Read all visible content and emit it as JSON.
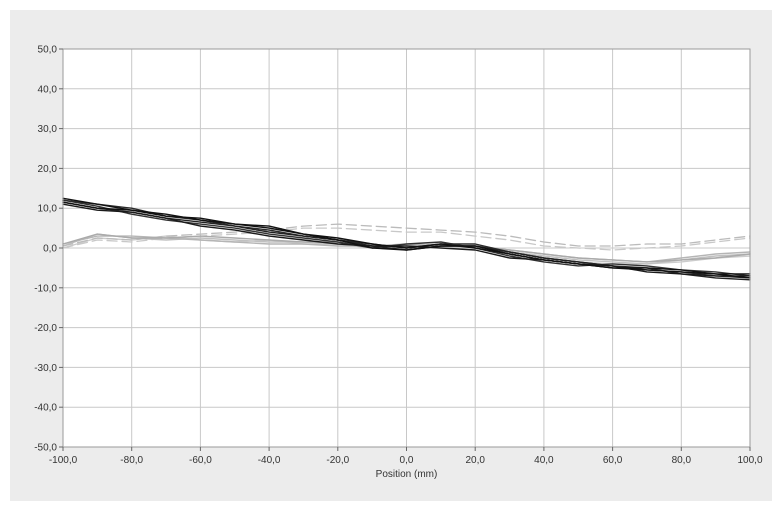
{
  "chart_data": {
    "type": "line",
    "title": "",
    "xlabel": "Position (mm)",
    "ylabel": "",
    "xlim": [
      -100,
      100
    ],
    "ylim": [
      -50,
      50
    ],
    "grid": true,
    "x_ticks": [
      -100,
      -80,
      -60,
      -40,
      -20,
      0,
      20,
      40,
      60,
      80,
      100
    ],
    "y_ticks": [
      -50,
      -40,
      -30,
      -20,
      -10,
      0,
      10,
      20,
      30,
      40,
      50
    ],
    "x_tick_labels": [
      "-100,0",
      "-80,0",
      "-60,0",
      "-40,0",
      "-20,0",
      "0,0",
      "20,0",
      "40,0",
      "60,0",
      "80,0",
      "100,0"
    ],
    "y_tick_labels": [
      "-50,0",
      "-40,0",
      "-30,0",
      "-20,0",
      "-10,0",
      "0,0",
      "10,0",
      "20,0",
      "30,0",
      "40,0",
      "50,0"
    ],
    "x": [
      -100,
      -90,
      -80,
      -70,
      -60,
      -50,
      -40,
      -30,
      -20,
      -10,
      0,
      10,
      20,
      30,
      40,
      50,
      60,
      70,
      80,
      90,
      100
    ],
    "series": [
      {
        "color": "#111111",
        "dashed": false,
        "values": [
          12.5,
          11.0,
          9.5,
          8.5,
          7.0,
          6.0,
          5.0,
          3.5,
          2.5,
          1.0,
          0.0,
          1.0,
          0.0,
          -1.5,
          -3.0,
          -4.0,
          -5.0,
          -5.5,
          -6.0,
          -6.5,
          -7.5
        ]
      },
      {
        "color": "#222222",
        "dashed": false,
        "values": [
          11.5,
          10.0,
          9.0,
          7.5,
          6.5,
          5.5,
          4.0,
          3.0,
          2.0,
          0.5,
          -0.5,
          0.5,
          0.5,
          -1.0,
          -2.5,
          -3.5,
          -4.5,
          -5.0,
          -6.5,
          -7.5,
          -8.0
        ]
      },
      {
        "color": "#333333",
        "dashed": false,
        "values": [
          12.0,
          10.5,
          8.5,
          7.0,
          6.0,
          5.0,
          3.5,
          2.5,
          1.5,
          0.0,
          1.0,
          1.5,
          0.0,
          -2.0,
          -3.5,
          -4.5,
          -4.0,
          -4.5,
          -5.5,
          -6.0,
          -7.0
        ]
      },
      {
        "color": "#1a1a1a",
        "dashed": false,
        "values": [
          11.0,
          9.5,
          9.0,
          7.5,
          5.5,
          4.5,
          3.0,
          2.0,
          1.0,
          0.5,
          0.5,
          0.0,
          -0.5,
          -2.5,
          -3.0,
          -4.0,
          -4.5,
          -6.0,
          -6.5,
          -7.0,
          -7.0
        ]
      },
      {
        "color": "#2a2a2a",
        "dashed": false,
        "values": [
          12.0,
          11.0,
          10.0,
          8.0,
          7.0,
          5.5,
          4.5,
          3.0,
          2.0,
          1.0,
          0.0,
          1.0,
          1.0,
          -1.0,
          -2.5,
          -3.5,
          -4.5,
          -5.5,
          -6.0,
          -7.0,
          -7.5
        ]
      },
      {
        "color": "#111111",
        "dashed": false,
        "values": [
          11.5,
          10.0,
          9.5,
          8.0,
          7.5,
          6.0,
          5.5,
          3.5,
          2.0,
          0.0,
          -0.5,
          0.5,
          0.5,
          -1.5,
          -3.0,
          -4.0,
          -5.0,
          -5.0,
          -5.5,
          -6.5,
          -6.5
        ]
      },
      {
        "color": "#c0c0c0",
        "dashed": false,
        "values": [
          0.5,
          3.5,
          2.5,
          2.0,
          2.5,
          2.0,
          1.5,
          1.5,
          1.0,
          0.5,
          0.5,
          0.5,
          0.0,
          -1.0,
          -2.0,
          -3.0,
          -3.5,
          -4.0,
          -3.0,
          -2.0,
          -1.5
        ]
      },
      {
        "color": "#b5b5b5",
        "dashed": false,
        "values": [
          1.0,
          3.0,
          3.0,
          2.5,
          2.0,
          1.5,
          1.0,
          1.0,
          0.5,
          0.5,
          1.0,
          0.5,
          0.5,
          -0.5,
          -1.5,
          -2.5,
          -3.0,
          -3.5,
          -2.5,
          -1.5,
          -1.0
        ]
      },
      {
        "color": "#cccccc",
        "dashed": false,
        "values": [
          0.0,
          2.5,
          2.0,
          3.0,
          2.0,
          1.5,
          2.0,
          1.0,
          1.0,
          0.0,
          0.5,
          1.0,
          0.0,
          -1.0,
          -2.5,
          -3.5,
          -4.0,
          -4.0,
          -3.5,
          -2.5,
          -2.0
        ]
      },
      {
        "color": "#aaaaaa",
        "dashed": false,
        "values": [
          1.0,
          3.5,
          2.5,
          2.5,
          3.0,
          2.5,
          2.0,
          1.5,
          1.5,
          0.5,
          0.0,
          0.5,
          0.5,
          -0.5,
          -1.5,
          -2.5,
          -3.0,
          -3.5,
          -3.0,
          -2.5,
          -1.5
        ]
      },
      {
        "color": "#bbbbbb",
        "dashed": true,
        "values": [
          0.5,
          2.5,
          2.0,
          3.0,
          3.5,
          4.0,
          4.5,
          5.5,
          6.0,
          5.5,
          5.0,
          4.5,
          4.0,
          3.0,
          1.5,
          0.5,
          0.5,
          1.0,
          1.0,
          2.0,
          3.0
        ]
      },
      {
        "color": "#c8c8c8",
        "dashed": true,
        "values": [
          0.0,
          2.0,
          1.5,
          2.5,
          3.0,
          3.5,
          4.0,
          5.0,
          5.0,
          4.5,
          4.0,
          4.0,
          3.0,
          2.0,
          0.5,
          0.0,
          -0.5,
          0.0,
          0.5,
          1.5,
          2.5
        ]
      }
    ]
  }
}
